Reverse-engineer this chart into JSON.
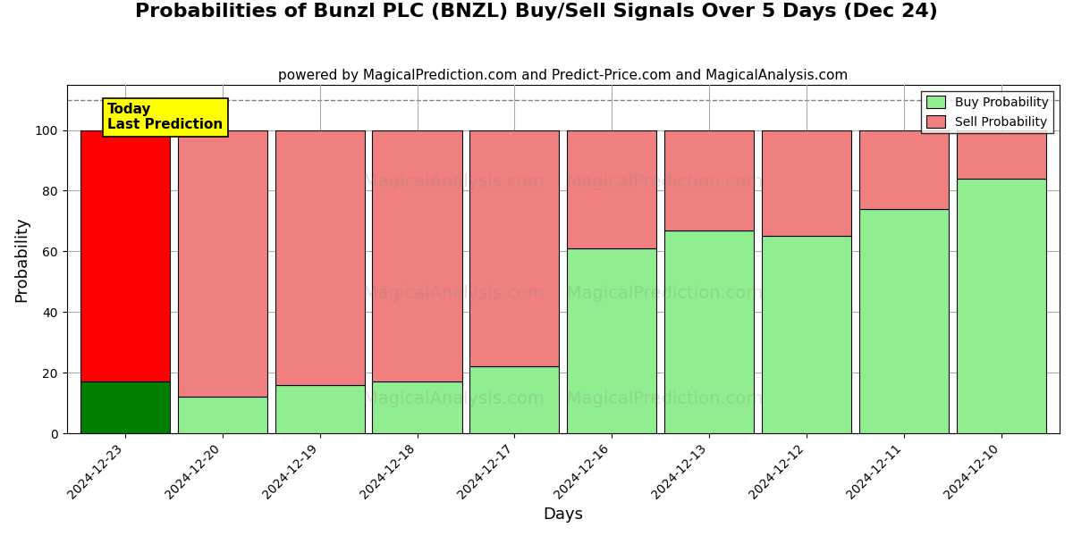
{
  "title": "Probabilities of Bunzl PLC (BNZL) Buy/Sell Signals Over 5 Days (Dec 24)",
  "subtitle": "powered by MagicalPrediction.com and Predict-Price.com and MagicalAnalysis.com",
  "xlabel": "Days",
  "ylabel": "Probability",
  "categories": [
    "2024-12-23",
    "2024-12-20",
    "2024-12-19",
    "2024-12-18",
    "2024-12-17",
    "2024-12-16",
    "2024-12-13",
    "2024-12-12",
    "2024-12-11",
    "2024-12-10"
  ],
  "buy_values": [
    17,
    12,
    16,
    17,
    22,
    61,
    67,
    65,
    74,
    84
  ],
  "sell_values": [
    83,
    88,
    84,
    83,
    78,
    39,
    33,
    35,
    26,
    16
  ],
  "buy_color_today": "#008000",
  "sell_color_today": "#ff0000",
  "buy_color_normal": "#90ee90",
  "sell_color_normal": "#f08080",
  "today_index": 0,
  "ylim": [
    0,
    115
  ],
  "yticks": [
    0,
    20,
    40,
    60,
    80,
    100
  ],
  "dashed_line_y": 110,
  "legend_buy_label": "Buy Probability",
  "legend_sell_label": "Sell Probability",
  "today_box_text": "Today\nLast Prediction",
  "today_box_color": "#ffff00",
  "background_color": "#ffffff",
  "grid_color": "#aaaaaa",
  "title_fontsize": 16,
  "subtitle_fontsize": 11,
  "axis_label_fontsize": 13,
  "tick_label_fontsize": 10,
  "bar_width": 0.92,
  "watermark1": "MagicalAnalysis.com",
  "watermark2": "MagicalPrediction.com"
}
